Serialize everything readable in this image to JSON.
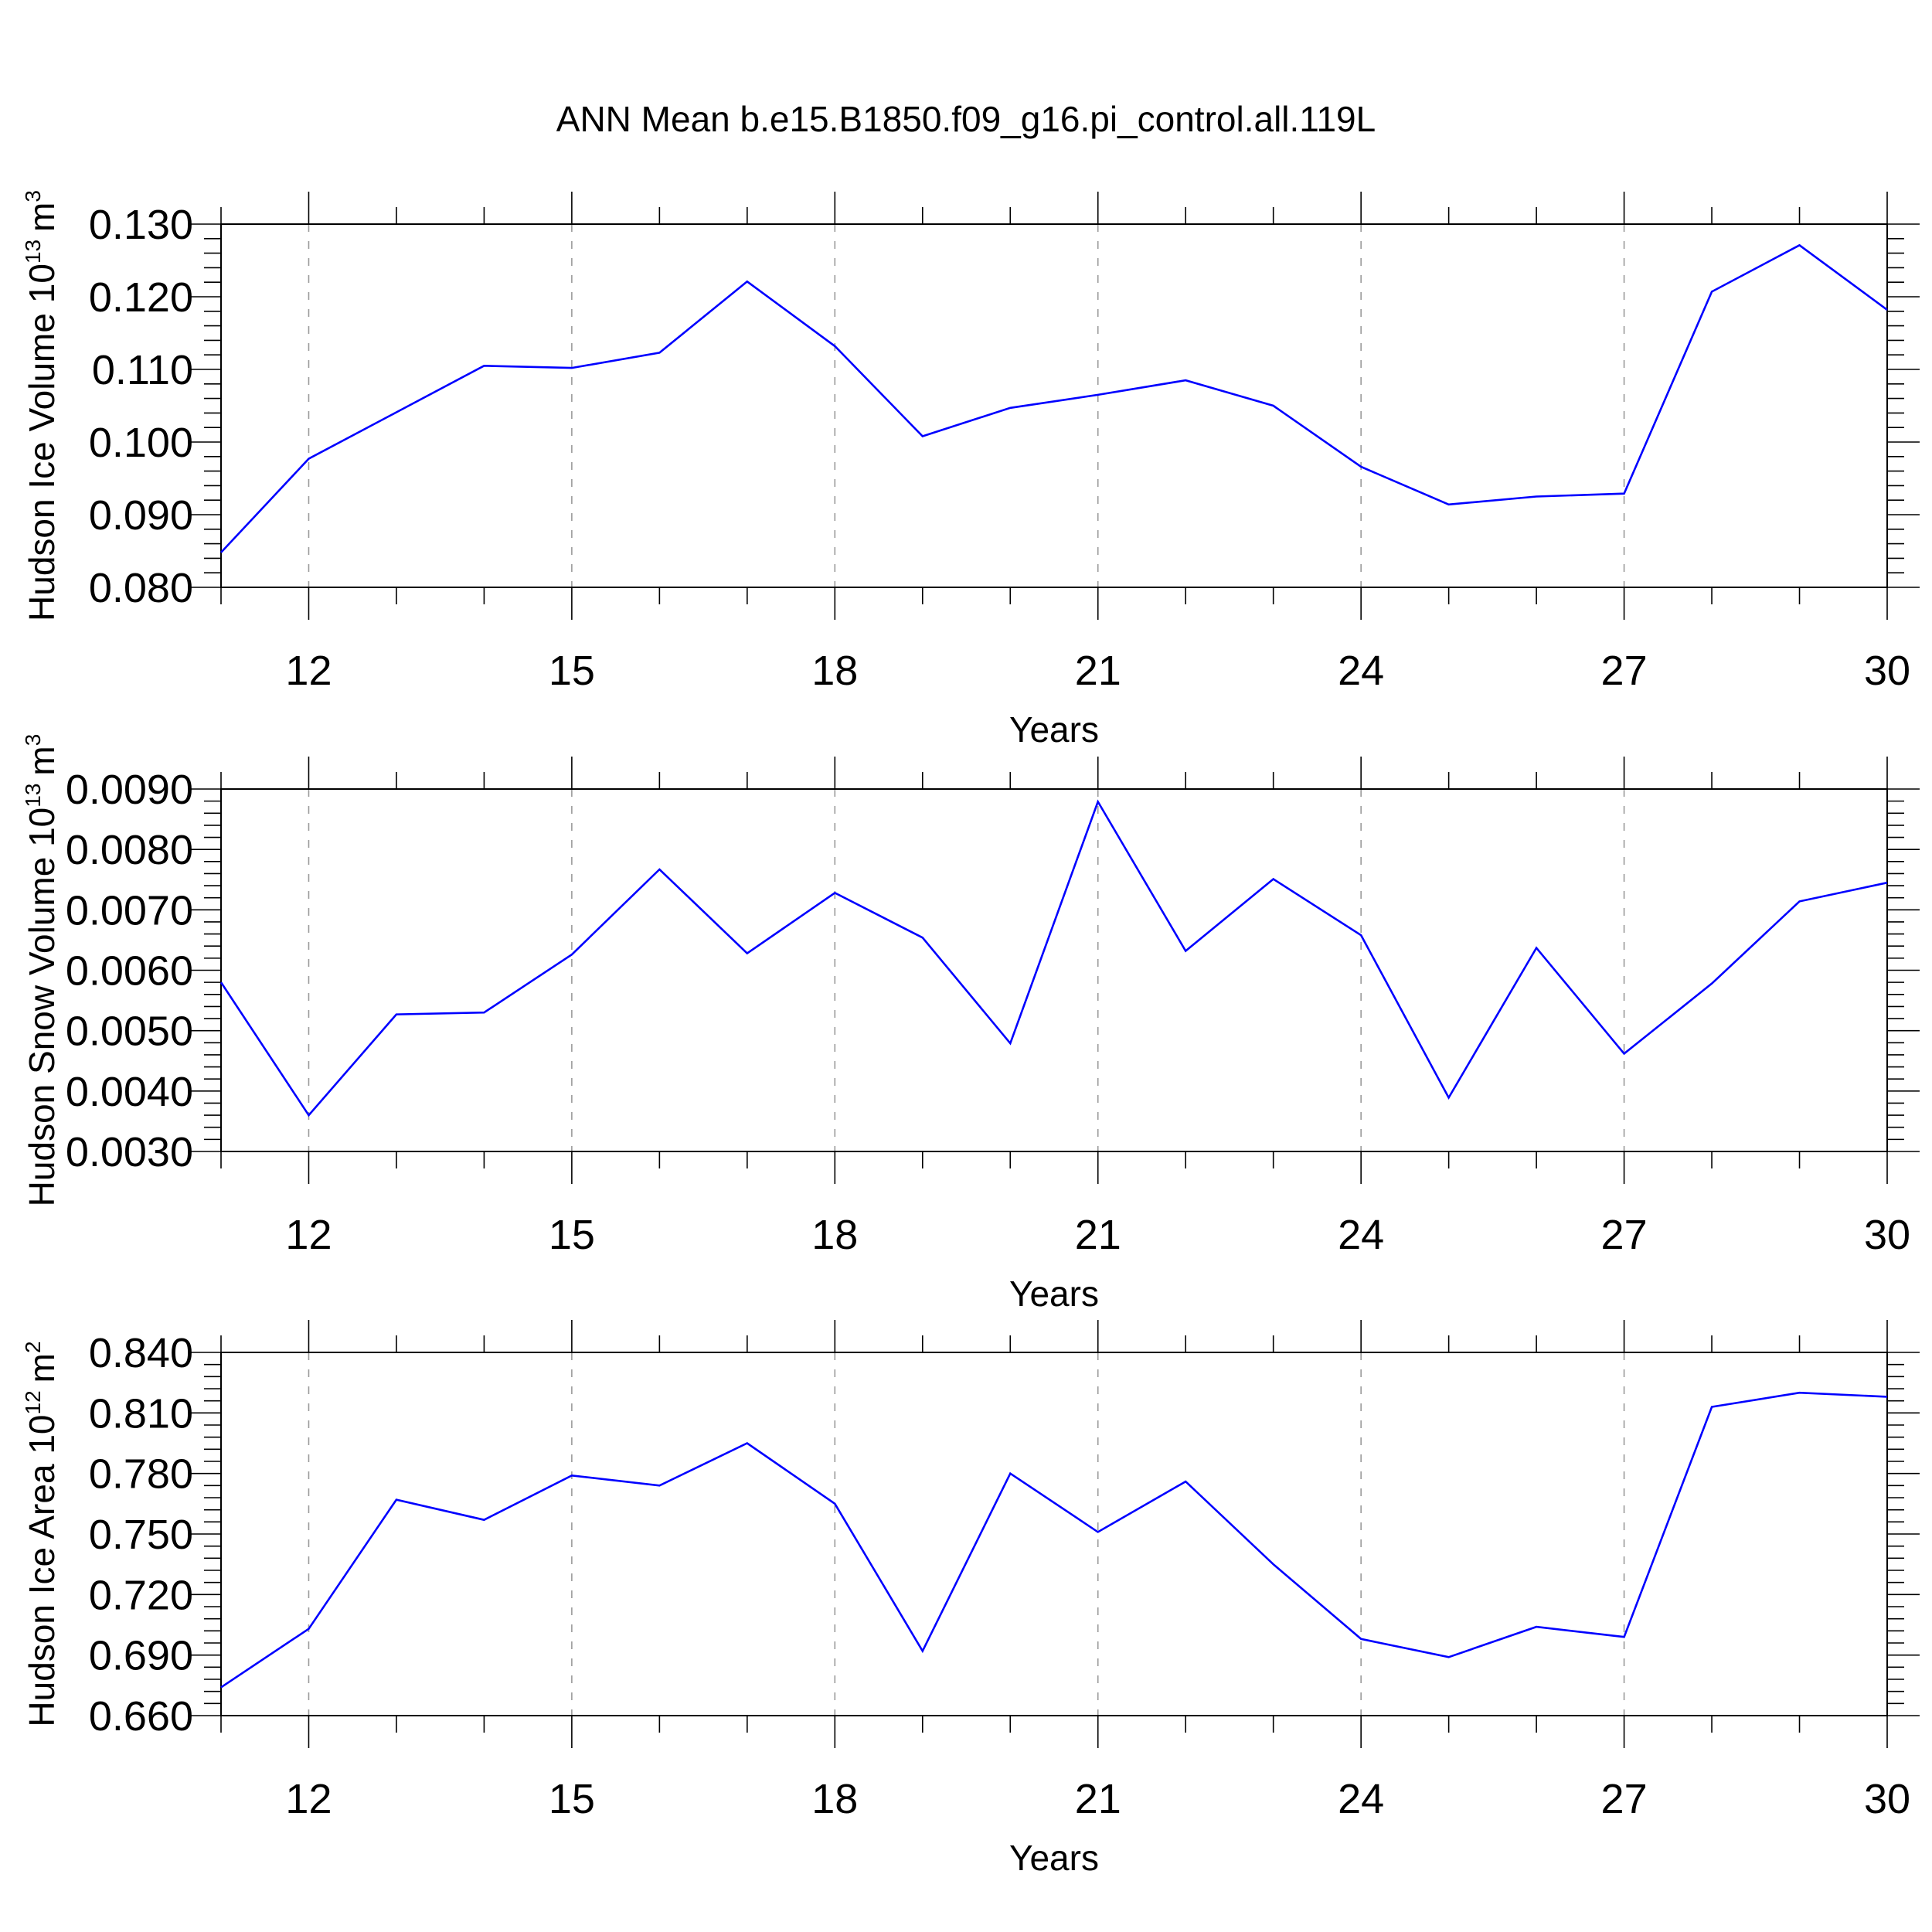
{
  "figure": {
    "title": "ANN Mean b.e15.B1850.f09_g16.pi_control.all.119L"
  },
  "colors": {
    "line": "#0000ff",
    "grid": "#9a9a9a",
    "axis": "#000000"
  },
  "chart_data": [
    {
      "type": "line",
      "ylabel": "Hudson Ice Volume 10",
      "ylabel_exponent": "13",
      "ylabel_unit": "m",
      "ylabel_unit_exponent": "3",
      "xlabel": "Years",
      "xlim": [
        11,
        30
      ],
      "ylim": [
        0.08,
        0.13
      ],
      "x_ticks": [
        12,
        15,
        18,
        21,
        24,
        27,
        30
      ],
      "x_tick_labels": [
        "12",
        "15",
        "18",
        "21",
        "24",
        "27",
        "30"
      ],
      "y_ticks": [
        0.08,
        0.09,
        0.1,
        0.11,
        0.12,
        0.13
      ],
      "y_tick_labels": [
        "0.080",
        "0.090",
        "0.100",
        "0.110",
        "0.120",
        "0.130"
      ],
      "grid": "x-dashed",
      "x": [
        11,
        12,
        13,
        14,
        15,
        16,
        17,
        18,
        19,
        20,
        21,
        22,
        23,
        24,
        25,
        26,
        27,
        28,
        29,
        30
      ],
      "series": [
        {
          "values": [
            0.0848,
            0.0977,
            0.1041,
            0.1105,
            0.1102,
            0.1123,
            0.1221,
            0.1132,
            0.1008,
            0.1047,
            0.1065,
            0.1085,
            0.105,
            0.0966,
            0.0914,
            0.0925,
            0.0929,
            0.1207,
            0.1271,
            0.1182
          ]
        }
      ]
    },
    {
      "type": "line",
      "ylabel": "Hudson Snow Volume 10",
      "ylabel_exponent": "13",
      "ylabel_unit": "m",
      "ylabel_unit_exponent": "3",
      "xlabel": "Years",
      "xlim": [
        11,
        30
      ],
      "ylim": [
        0.003,
        0.009
      ],
      "x_ticks": [
        12,
        15,
        18,
        21,
        24,
        27,
        30
      ],
      "x_tick_labels": [
        "12",
        "15",
        "18",
        "21",
        "24",
        "27",
        "30"
      ],
      "y_ticks": [
        0.003,
        0.004,
        0.005,
        0.006,
        0.007,
        0.008,
        0.009
      ],
      "y_tick_labels": [
        "0.0030",
        "0.0040",
        "0.0050",
        "0.0060",
        "0.0070",
        "0.0080",
        "0.0090"
      ],
      "grid": "x-dashed",
      "x": [
        11,
        12,
        13,
        14,
        15,
        16,
        17,
        18,
        19,
        20,
        21,
        22,
        23,
        24,
        25,
        26,
        27,
        28,
        29,
        30
      ],
      "series": [
        {
          "values": [
            0.0058,
            0.0036,
            0.00527,
            0.0053,
            0.00626,
            0.00767,
            0.00628,
            0.00728,
            0.00654,
            0.00479,
            0.00879,
            0.00632,
            0.00751,
            0.00658,
            0.00389,
            0.00637,
            0.00462,
            0.00578,
            0.00714,
            0.00745
          ]
        }
      ]
    },
    {
      "type": "line",
      "ylabel": "Hudson Ice Area 10",
      "ylabel_exponent": "12",
      "ylabel_unit": "m",
      "ylabel_unit_exponent": "2",
      "xlabel": "Years",
      "xlim": [
        11,
        30
      ],
      "ylim": [
        0.66,
        0.84
      ],
      "x_ticks": [
        12,
        15,
        18,
        21,
        24,
        27,
        30
      ],
      "x_tick_labels": [
        "12",
        "15",
        "18",
        "21",
        "24",
        "27",
        "30"
      ],
      "y_ticks": [
        0.66,
        0.69,
        0.72,
        0.75,
        0.78,
        0.81,
        0.84
      ],
      "y_tick_labels": [
        "0.660",
        "0.690",
        "0.720",
        "0.750",
        "0.780",
        "0.810",
        "0.840"
      ],
      "grid": "x-dashed",
      "x": [
        11,
        12,
        13,
        14,
        15,
        16,
        17,
        18,
        19,
        20,
        21,
        22,
        23,
        24,
        25,
        26,
        27,
        28,
        29,
        30
      ],
      "series": [
        {
          "values": [
            0.674,
            0.703,
            0.767,
            0.757,
            0.779,
            0.774,
            0.795,
            0.765,
            0.692,
            0.78,
            0.751,
            0.776,
            0.735,
            0.698,
            0.689,
            0.704,
            0.699,
            0.813,
            0.82,
            0.818
          ]
        }
      ]
    }
  ]
}
